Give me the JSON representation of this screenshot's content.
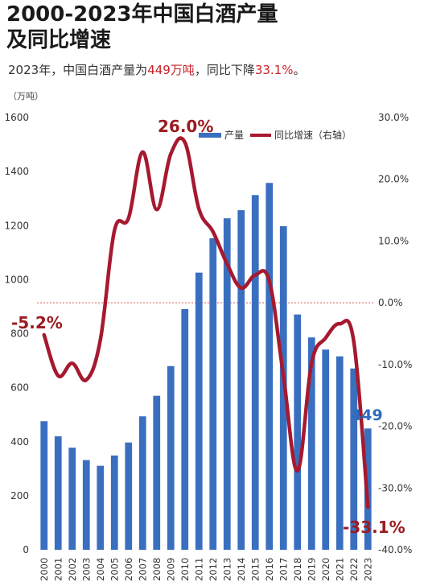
{
  "header": {
    "title_line1": "2000-2023年中国白酒产量",
    "title_line2": "及同比增速",
    "subtitle_pre": "2023年，中国白酒产量为",
    "subtitle_val1": "449万吨",
    "subtitle_mid": "，同比下降",
    "subtitle_val2": "33.1%",
    "subtitle_post": "。"
  },
  "chart_data": {
    "type": "bar",
    "title": "2000-2023年中国白酒产量及同比增速",
    "ylabel": "（万吨）",
    "ylim": [
      0,
      1600
    ],
    "y2lim": [
      -40,
      30
    ],
    "yticks": [
      "0",
      "200",
      "400",
      "600",
      "800",
      "1000",
      "1200",
      "1400",
      "1600"
    ],
    "y2ticks": [
      "-40.0%",
      "-30.0%",
      "-20.0%",
      "-10.0%",
      "0.0%",
      "10.0%",
      "20.0%",
      "30.0%"
    ],
    "categories": [
      "2000",
      "2001",
      "2002",
      "2003",
      "2004",
      "2005",
      "2006",
      "2007",
      "2008",
      "2009",
      "2010",
      "2011",
      "2012",
      "2013",
      "2014",
      "2015",
      "2016",
      "2017",
      "2018",
      "2019",
      "2020",
      "2021",
      "2022",
      "2023"
    ],
    "series": [
      {
        "name": "产量",
        "type": "bar",
        "axis": "left",
        "color": "#3a6fc0",
        "values": [
          476,
          420,
          378,
          332,
          311,
          349,
          397,
          494,
          570,
          680,
          891,
          1026,
          1153,
          1227,
          1257,
          1313,
          1358,
          1198,
          871,
          786,
          741,
          716,
          671,
          449
        ]
      },
      {
        "name": "同比增速（右轴）",
        "type": "line",
        "axis": "right",
        "color": "#a6192e",
        "values": [
          -5.2,
          -11.8,
          -9.8,
          -12.5,
          -6.0,
          11.7,
          13.7,
          24.4,
          15.1,
          24.1,
          26.0,
          15.2,
          11.5,
          6.3,
          2.4,
          4.5,
          3.5,
          -11.8,
          -27.2,
          -9.8,
          -5.7,
          -3.4,
          -6.3,
          -33.1
        ]
      }
    ],
    "annotations": [
      "-5.2%",
      "26.0%",
      "449",
      "-33.1%"
    ],
    "legend": "top-right",
    "grid": false
  }
}
